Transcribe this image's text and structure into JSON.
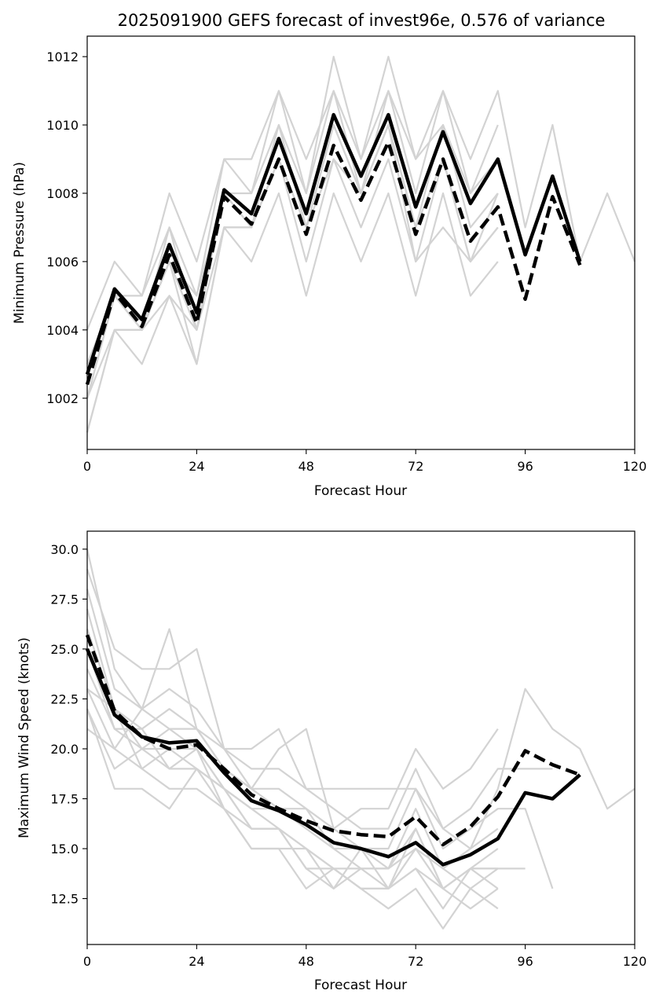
{
  "chart_data": [
    {
      "type": "line",
      "title": "2025091900 GEFS forecast of invest96e, 0.576 of variance",
      "xlabel": "Forecast Hour",
      "ylabel": "Minimum Pressure (hPa)",
      "xlim": [
        0,
        120
      ],
      "ylim": [
        1000.5,
        1012.6
      ],
      "xticks": [
        0,
        24,
        48,
        72,
        96,
        120
      ],
      "yticks": [
        1002,
        1004,
        1006,
        1008,
        1010,
        1012
      ],
      "xtick_labels": [
        "0",
        "24",
        "48",
        "72",
        "96",
        "120"
      ],
      "ytick_labels": [
        "1002",
        "1004",
        "1006",
        "1008",
        "1010",
        "1012"
      ],
      "member_color": "#d3d3d3",
      "mean_color": "#000000",
      "members": [
        {
          "x": [
            0,
            6,
            12,
            18,
            24,
            30,
            36,
            42,
            48,
            54,
            60,
            66,
            72,
            78,
            84,
            90,
            96,
            102,
            108,
            114,
            120
          ],
          "y": [
            1004,
            1006,
            1005,
            1008,
            1006,
            1009,
            1009,
            1011,
            1009,
            1011,
            1009,
            1011,
            1009,
            1011,
            1009,
            1011,
            1007,
            1010,
            1006,
            1008,
            1006
          ]
        },
        {
          "x": [
            0,
            6,
            12,
            18,
            24,
            30,
            36,
            42,
            48,
            54,
            60,
            66,
            72,
            78,
            84,
            90
          ],
          "y": [
            1003,
            1005,
            1005,
            1007,
            1005,
            1009,
            1008,
            1010,
            1008,
            1012,
            1009,
            1012,
            1009,
            1010,
            1008,
            1010
          ]
        },
        {
          "x": [
            0,
            6,
            12,
            18,
            24,
            30,
            36,
            42,
            48,
            54,
            60,
            66,
            72,
            78,
            84,
            90
          ],
          "y": [
            1002,
            1005,
            1004,
            1007,
            1004,
            1008,
            1008,
            1011,
            1008,
            1011,
            1008,
            1011,
            1008,
            1011,
            1008,
            1009
          ]
        },
        {
          "x": [
            0,
            6,
            12,
            18,
            24,
            30,
            36,
            42,
            48,
            54,
            60,
            66,
            72,
            78,
            84,
            90
          ],
          "y": [
            1003,
            1005,
            1004,
            1006,
            1004,
            1008,
            1007,
            1010,
            1007,
            1010,
            1008,
            1010,
            1007,
            1010,
            1007,
            1008
          ]
        },
        {
          "x": [
            0,
            6,
            12,
            18,
            24,
            30,
            36,
            42,
            48,
            54,
            60,
            66,
            72,
            78,
            84,
            90
          ],
          "y": [
            1002,
            1005,
            1004,
            1006,
            1005,
            1008,
            1007,
            1009,
            1007,
            1010,
            1008,
            1010,
            1007,
            1009,
            1006,
            1008
          ]
        },
        {
          "x": [
            0,
            6,
            12,
            18,
            24,
            30,
            36,
            42,
            48,
            54,
            60,
            66,
            72,
            78,
            84,
            90
          ],
          "y": [
            1001,
            1004,
            1004,
            1005,
            1004,
            1007,
            1007,
            1009,
            1006,
            1009,
            1007,
            1009,
            1006,
            1009,
            1006,
            1007
          ]
        },
        {
          "x": [
            0,
            6,
            12,
            18,
            24,
            30,
            36,
            42,
            48,
            54,
            60,
            66,
            72,
            78,
            84,
            90
          ],
          "y": [
            1002,
            1004,
            1003,
            1005,
            1003,
            1007,
            1006,
            1008,
            1005,
            1008,
            1006,
            1008,
            1005,
            1008,
            1005,
            1006
          ]
        },
        {
          "x": [
            0,
            6,
            12,
            18,
            24,
            30,
            36,
            42,
            48,
            54,
            60,
            66,
            72,
            78,
            84,
            90
          ],
          "y": [
            1001,
            1004,
            1004,
            1006,
            1003,
            1007,
            1007,
            1009,
            1007,
            1009,
            1008,
            1010,
            1006,
            1007,
            1006,
            1007
          ]
        }
      ],
      "mean": {
        "x": [
          0,
          6,
          12,
          18,
          24,
          30,
          36,
          42,
          48,
          54,
          60,
          66,
          72,
          78,
          84,
          90,
          96,
          102,
          108
        ],
        "y": [
          1002.7,
          1005.2,
          1004.3,
          1006.5,
          1004.5,
          1008.1,
          1007.4,
          1009.6,
          1007.4,
          1010.3,
          1008.5,
          1010.3,
          1007.6,
          1009.8,
          1007.7,
          1009.0,
          1006.2,
          1008.5,
          1006.0
        ]
      },
      "median": {
        "x": [
          0,
          6,
          12,
          18,
          24,
          30,
          36,
          42,
          48,
          54,
          60,
          66,
          72,
          78,
          84,
          90,
          96,
          102,
          108
        ],
        "y": [
          1002.4,
          1005.1,
          1004.1,
          1006.2,
          1004.2,
          1007.9,
          1007.1,
          1009.0,
          1006.8,
          1009.4,
          1007.8,
          1009.5,
          1006.8,
          1009.0,
          1006.6,
          1007.6,
          1004.9,
          1007.9,
          1005.9
        ]
      }
    },
    {
      "type": "line",
      "title": "",
      "xlabel": "Forecast Hour",
      "ylabel": "Maximum Wind Speed (knots)",
      "xlim": [
        0,
        120
      ],
      "ylim": [
        10.2,
        30.9
      ],
      "xticks": [
        0,
        24,
        48,
        72,
        96,
        120
      ],
      "yticks": [
        12.5,
        15.0,
        17.5,
        20.0,
        22.5,
        25.0,
        27.5,
        30.0
      ],
      "xtick_labels": [
        "0",
        "24",
        "48",
        "72",
        "96",
        "120"
      ],
      "ytick_labels": [
        "12.5",
        "15.0",
        "17.5",
        "20.0",
        "22.5",
        "25.0",
        "27.5",
        "30.0"
      ],
      "member_color": "#d3d3d3",
      "mean_color": "#000000",
      "members": [
        {
          "x": [
            0,
            6,
            12,
            18,
            24,
            30,
            36,
            42,
            48,
            54,
            60,
            66,
            72,
            78,
            84,
            90,
            96,
            102,
            108,
            114,
            120
          ],
          "y": [
            30,
            24,
            22,
            26,
            21,
            20,
            20,
            21,
            18,
            18,
            18,
            18,
            18,
            16,
            15,
            18,
            23,
            21,
            20,
            17,
            18
          ]
        },
        {
          "x": [
            0,
            6,
            12,
            18,
            24,
            30,
            36,
            42,
            48,
            54,
            60,
            66,
            72,
            78,
            84,
            90
          ],
          "y": [
            29,
            25,
            24,
            24,
            25,
            20,
            18,
            20,
            21,
            16,
            17,
            17,
            20,
            18,
            19,
            21
          ]
        },
        {
          "x": [
            0,
            6,
            12,
            18,
            24,
            30,
            36,
            42,
            48,
            54,
            60,
            66,
            72,
            78,
            84,
            90,
            96,
            102
          ],
          "y": [
            28,
            23,
            22,
            23,
            22,
            20,
            19,
            19,
            18,
            17,
            16,
            16,
            19,
            16,
            17,
            19,
            19,
            19
          ]
        },
        {
          "x": [
            0,
            6,
            12,
            18,
            24,
            30,
            36,
            42,
            48,
            54,
            60,
            66,
            72,
            78,
            84,
            90,
            96,
            102
          ],
          "y": [
            27,
            22,
            21,
            22,
            21,
            19,
            18,
            18,
            17,
            16,
            15,
            15,
            18,
            15,
            16,
            17,
            17,
            13
          ]
        },
        {
          "x": [
            0,
            6,
            12,
            18,
            24,
            30,
            36,
            42,
            48,
            54,
            60,
            66,
            72,
            78,
            84,
            90
          ],
          "y": [
            26,
            22,
            20,
            21,
            21,
            19,
            18,
            17,
            17,
            15,
            15,
            14,
            17,
            14,
            15,
            16
          ]
        },
        {
          "x": [
            0,
            6,
            12,
            18,
            24,
            30,
            36,
            42,
            48,
            54,
            60,
            66,
            72,
            78,
            84,
            90
          ],
          "y": [
            25,
            21,
            20,
            20,
            20,
            18,
            17,
            17,
            16,
            15,
            14,
            14,
            16,
            13,
            14,
            15
          ]
        },
        {
          "x": [
            0,
            6,
            12,
            18,
            24,
            30,
            36,
            42,
            48,
            54,
            60,
            66,
            72,
            78,
            84,
            90,
            96
          ],
          "y": [
            24,
            21,
            21,
            19,
            20,
            18,
            17,
            16,
            15,
            14,
            14,
            13,
            15,
            13,
            14,
            14,
            14
          ]
        },
        {
          "x": [
            0,
            6,
            12,
            18,
            24,
            30,
            36,
            42,
            48,
            54,
            60,
            66,
            72,
            78,
            84,
            90
          ],
          "y": [
            23,
            20,
            19,
            20,
            19,
            18,
            16,
            16,
            15,
            14,
            13,
            13,
            14,
            13,
            12,
            13
          ]
        },
        {
          "x": [
            0,
            6,
            12,
            18,
            24,
            30,
            36,
            42,
            48,
            54,
            60,
            66,
            72,
            78,
            84,
            90
          ],
          "y": [
            22,
            19,
            20,
            19,
            19,
            17,
            16,
            16,
            14,
            14,
            13,
            13,
            14,
            12,
            14,
            13
          ]
        },
        {
          "x": [
            0,
            6,
            12,
            18,
            24,
            30,
            36,
            42,
            48,
            54,
            60,
            66,
            72,
            78,
            84,
            90
          ],
          "y": [
            21,
            20,
            22,
            21,
            20,
            17,
            15,
            15,
            13,
            14,
            13,
            12,
            13,
            11,
            13,
            12
          ]
        },
        {
          "x": [
            0,
            6,
            12,
            18,
            24,
            30,
            36,
            42,
            48,
            54,
            60,
            66,
            72,
            78,
            84,
            90
          ],
          "y": [
            22,
            18,
            18,
            17,
            19,
            18,
            16,
            16,
            14,
            13,
            15,
            13,
            16,
            13,
            14,
            14
          ]
        },
        {
          "x": [
            0,
            6,
            12,
            18,
            24,
            30,
            36,
            42,
            48,
            54,
            60,
            66,
            72,
            78,
            84,
            90
          ],
          "y": [
            23,
            22,
            19,
            18,
            18,
            17,
            15,
            15,
            15,
            13,
            14,
            14,
            15,
            14,
            13,
            14
          ]
        }
      ],
      "mean": {
        "x": [
          0,
          6,
          12,
          18,
          24,
          30,
          36,
          42,
          48,
          54,
          60,
          66,
          72,
          78,
          84,
          90,
          96,
          102,
          108
        ],
        "y": [
          25.0,
          21.7,
          20.6,
          20.3,
          20.4,
          18.8,
          17.4,
          16.9,
          16.2,
          15.3,
          15.0,
          14.6,
          15.3,
          14.2,
          14.7,
          15.5,
          17.8,
          17.5,
          18.7
        ]
      },
      "median": {
        "x": [
          0,
          6,
          12,
          18,
          24,
          30,
          36,
          42,
          48,
          54,
          60,
          66,
          72,
          78,
          84,
          90,
          96,
          102,
          108
        ],
        "y": [
          25.7,
          21.9,
          20.6,
          20.0,
          20.2,
          19.0,
          17.7,
          17.0,
          16.4,
          15.9,
          15.7,
          15.6,
          16.6,
          15.2,
          16.1,
          17.6,
          19.9,
          19.2,
          18.7
        ]
      }
    }
  ]
}
